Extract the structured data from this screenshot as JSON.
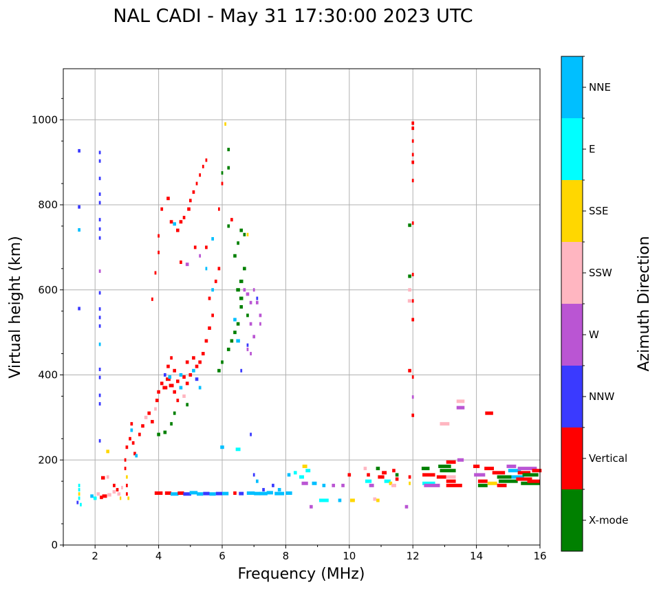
{
  "chart_data": {
    "type": "scatter",
    "title": "NAL CADI - May 31 17:30:00 2023 UTC",
    "xlabel": "Frequency (MHz)",
    "ylabel": "Virtual height (km)",
    "xlim": [
      1,
      16
    ],
    "ylim": [
      0,
      1120
    ],
    "xticks": [
      2,
      4,
      6,
      8,
      10,
      12,
      14,
      16
    ],
    "yticks": [
      0,
      200,
      400,
      600,
      800,
      1000
    ],
    "grid": true,
    "colorbar": {
      "label": "Azimuth Direction",
      "categories": [
        "X-mode",
        "Vertical",
        "NNW",
        "W",
        "SSW",
        "SSE",
        "E",
        "NNE"
      ],
      "colors": [
        "#008000",
        "#ff0000",
        "#3a3aff",
        "#ba55d3",
        "#ffb6c1",
        "#ffd700",
        "#00ffff",
        "#00bfff"
      ]
    },
    "points_format": "[frequency_MHz, height_km, category_index, bin_width_MHz]",
    "points": [
      [
        1.5,
        927,
        2,
        0.08
      ],
      [
        1.5,
        795,
        2,
        0.08
      ],
      [
        1.5,
        741,
        7,
        0.08
      ],
      [
        1.5,
        556,
        2,
        0.08
      ],
      [
        1.5,
        140,
        6,
        0.06
      ],
      [
        1.5,
        130,
        6,
        0.06
      ],
      [
        1.5,
        120,
        5,
        0.06
      ],
      [
        1.5,
        110,
        6,
        0.06
      ],
      [
        1.45,
        100,
        2,
        0.06
      ],
      [
        1.55,
        95,
        6,
        0.06
      ],
      [
        2.15,
        923,
        2,
        0.06
      ],
      [
        2.15,
        903,
        2,
        0.06
      ],
      [
        2.15,
        862,
        2,
        0.06
      ],
      [
        2.15,
        825,
        2,
        0.06
      ],
      [
        2.15,
        805,
        2,
        0.06
      ],
      [
        2.15,
        765,
        2,
        0.06
      ],
      [
        2.15,
        743,
        2,
        0.06
      ],
      [
        2.15,
        722,
        2,
        0.06
      ],
      [
        2.15,
        644,
        3,
        0.06
      ],
      [
        2.15,
        593,
        2,
        0.06
      ],
      [
        2.15,
        555,
        2,
        0.06
      ],
      [
        2.15,
        535,
        2,
        0.06
      ],
      [
        2.15,
        515,
        2,
        0.06
      ],
      [
        2.15,
        472,
        7,
        0.06
      ],
      [
        2.15,
        413,
        2,
        0.06
      ],
      [
        2.15,
        394,
        2,
        0.06
      ],
      [
        2.15,
        352,
        2,
        0.06
      ],
      [
        2.15,
        332,
        2,
        0.06
      ],
      [
        2.15,
        245,
        2,
        0.06
      ],
      [
        1.9,
        115,
        7,
        0.1
      ],
      [
        2.0,
        110,
        6,
        0.1
      ],
      [
        2.1,
        120,
        4,
        0.1
      ],
      [
        2.2,
        112,
        1,
        0.1
      ],
      [
        2.3,
        115,
        1,
        0.15
      ],
      [
        2.45,
        118,
        4,
        0.12
      ],
      [
        2.6,
        125,
        4,
        0.1
      ],
      [
        2.7,
        130,
        1,
        0.08
      ],
      [
        2.75,
        120,
        4,
        0.1
      ],
      [
        2.4,
        220,
        5,
        0.1
      ],
      [
        2.25,
        158,
        1,
        0.12
      ],
      [
        2.4,
        160,
        4,
        0.08
      ],
      [
        2.6,
        140,
        1,
        0.08
      ],
      [
        2.8,
        110,
        5,
        0.05
      ],
      [
        2.85,
        135,
        4,
        0.06
      ],
      [
        2.95,
        200,
        1,
        0.06
      ],
      [
        2.95,
        180,
        1,
        0.06
      ],
      [
        3.0,
        160,
        5,
        0.06
      ],
      [
        3.0,
        140,
        1,
        0.06
      ],
      [
        3.0,
        120,
        1,
        0.06
      ],
      [
        3.05,
        110,
        5,
        0.06
      ],
      [
        3.0,
        230,
        1,
        0.08
      ],
      [
        3.1,
        250,
        1,
        0.08
      ],
      [
        3.15,
        270,
        7,
        0.08
      ],
      [
        3.2,
        240,
        1,
        0.08
      ],
      [
        3.25,
        215,
        1,
        0.08
      ],
      [
        3.3,
        210,
        7,
        0.08
      ],
      [
        3.15,
        285,
        1,
        0.08
      ],
      [
        3.4,
        260,
        1,
        0.08
      ],
      [
        3.5,
        280,
        1,
        0.1
      ],
      [
        3.6,
        300,
        4,
        0.1
      ],
      [
        3.7,
        310,
        1,
        0.1
      ],
      [
        3.8,
        290,
        1,
        0.1
      ],
      [
        3.9,
        320,
        4,
        0.08
      ],
      [
        3.95,
        340,
        1,
        0.1
      ],
      [
        4.0,
        360,
        1,
        0.1
      ],
      [
        4.1,
        380,
        1,
        0.1
      ],
      [
        4.2,
        370,
        1,
        0.15
      ],
      [
        4.3,
        390,
        1,
        0.15
      ],
      [
        4.4,
        375,
        1,
        0.15
      ],
      [
        4.5,
        360,
        1,
        0.1
      ],
      [
        4.6,
        385,
        1,
        0.1
      ],
      [
        4.7,
        370,
        7,
        0.1
      ],
      [
        4.8,
        395,
        1,
        0.1
      ],
      [
        4.9,
        380,
        1,
        0.1
      ],
      [
        5.0,
        400,
        1,
        0.1
      ],
      [
        5.1,
        410,
        7,
        0.1
      ],
      [
        5.2,
        420,
        1,
        0.1
      ],
      [
        5.3,
        430,
        1,
        0.1
      ],
      [
        5.4,
        450,
        1,
        0.1
      ],
      [
        5.5,
        480,
        1,
        0.1
      ],
      [
        5.6,
        510,
        1,
        0.1
      ],
      [
        5.7,
        540,
        1,
        0.08
      ],
      [
        5.6,
        580,
        1,
        0.08
      ],
      [
        5.7,
        600,
        7,
        0.08
      ],
      [
        5.8,
        620,
        1,
        0.08
      ],
      [
        5.9,
        650,
        1,
        0.08
      ],
      [
        5.5,
        700,
        1,
        0.08
      ],
      [
        5.7,
        720,
        7,
        0.08
      ],
      [
        4.3,
        420,
        1,
        0.1
      ],
      [
        4.5,
        410,
        1,
        0.1
      ],
      [
        4.7,
        400,
        7,
        0.1
      ],
      [
        4.9,
        430,
        1,
        0.1
      ],
      [
        5.1,
        440,
        1,
        0.1
      ],
      [
        4.4,
        440,
        1,
        0.08
      ],
      [
        4.8,
        350,
        4,
        0.1
      ],
      [
        4.6,
        340,
        1,
        0.08
      ],
      [
        5.2,
        390,
        2,
        0.1
      ],
      [
        5.3,
        370,
        7,
        0.08
      ],
      [
        4.2,
        400,
        2,
        0.08
      ],
      [
        4.35,
        395,
        7,
        0.1
      ],
      [
        4.0,
        260,
        0,
        0.1
      ],
      [
        4.2,
        265,
        0,
        0.1
      ],
      [
        4.4,
        285,
        0,
        0.08
      ],
      [
        4.5,
        310,
        0,
        0.08
      ],
      [
        4.9,
        330,
        0,
        0.08
      ],
      [
        5.9,
        410,
        0,
        0.1
      ],
      [
        6.0,
        430,
        0,
        0.08
      ],
      [
        6.2,
        460,
        0,
        0.1
      ],
      [
        6.3,
        480,
        0,
        0.1
      ],
      [
        6.4,
        500,
        0,
        0.1
      ],
      [
        6.5,
        520,
        0,
        0.1
      ],
      [
        6.6,
        560,
        0,
        0.1
      ],
      [
        6.5,
        600,
        0,
        0.12
      ],
      [
        6.6,
        620,
        0,
        0.12
      ],
      [
        6.7,
        650,
        0,
        0.1
      ],
      [
        6.4,
        680,
        0,
        0.1
      ],
      [
        6.5,
        710,
        0,
        0.08
      ],
      [
        6.7,
        730,
        0,
        0.08
      ],
      [
        6.2,
        750,
        0,
        0.08
      ],
      [
        6.6,
        740,
        0,
        0.1
      ],
      [
        6.2,
        930,
        0,
        0.08
      ],
      [
        6.2,
        887,
        0,
        0.08
      ],
      [
        6.0,
        875,
        0,
        0.06
      ],
      [
        6.5,
        480,
        7,
        0.12
      ],
      [
        6.4,
        530,
        7,
        0.1
      ],
      [
        6.8,
        540,
        0,
        0.08
      ],
      [
        6.6,
        580,
        0,
        0.12
      ],
      [
        6.7,
        600,
        3,
        0.08
      ],
      [
        6.8,
        590,
        3,
        0.1
      ],
      [
        6.9,
        570,
        3,
        0.08
      ],
      [
        7.1,
        570,
        3,
        0.08
      ],
      [
        7.2,
        540,
        3,
        0.08
      ],
      [
        6.9,
        520,
        3,
        0.08
      ],
      [
        7.0,
        490,
        3,
        0.08
      ],
      [
        6.8,
        460,
        3,
        0.06
      ],
      [
        6.9,
        450,
        3,
        0.06
      ],
      [
        7.0,
        600,
        3,
        0.06
      ],
      [
        7.1,
        580,
        2,
        0.06
      ],
      [
        6.8,
        470,
        2,
        0.06
      ],
      [
        6.6,
        410,
        2,
        0.06
      ],
      [
        7.2,
        520,
        3,
        0.06
      ],
      [
        6.1,
        990,
        5,
        0.06
      ],
      [
        6.8,
        730,
        5,
        0.06
      ],
      [
        6.3,
        765,
        1,
        0.08
      ],
      [
        5.9,
        790,
        1,
        0.06
      ],
      [
        6.0,
        850,
        1,
        0.06
      ],
      [
        4.3,
        815,
        1,
        0.1
      ],
      [
        4.1,
        790,
        1,
        0.08
      ],
      [
        4.4,
        760,
        1,
        0.1
      ],
      [
        4.5,
        755,
        7,
        0.1
      ],
      [
        4.6,
        740,
        1,
        0.1
      ],
      [
        4.7,
        760,
        1,
        0.1
      ],
      [
        4.8,
        770,
        1,
        0.08
      ],
      [
        4.95,
        790,
        1,
        0.1
      ],
      [
        5.0,
        810,
        1,
        0.08
      ],
      [
        5.1,
        830,
        1,
        0.08
      ],
      [
        5.2,
        850,
        1,
        0.06
      ],
      [
        5.3,
        870,
        1,
        0.06
      ],
      [
        5.4,
        890,
        1,
        0.06
      ],
      [
        5.5,
        905,
        1,
        0.06
      ],
      [
        4.9,
        660,
        3,
        0.1
      ],
      [
        4.7,
        665,
        1,
        0.08
      ],
      [
        5.15,
        700,
        1,
        0.08
      ],
      [
        5.3,
        680,
        3,
        0.06
      ],
      [
        5.5,
        650,
        7,
        0.06
      ],
      [
        4.0,
        727,
        1,
        0.06
      ],
      [
        4.0,
        688,
        1,
        0.06
      ],
      [
        3.8,
        578,
        1,
        0.06
      ],
      [
        3.9,
        640,
        1,
        0.06
      ],
      [
        4.0,
        122,
        1,
        0.25
      ],
      [
        4.3,
        122,
        1,
        0.2
      ],
      [
        4.5,
        120,
        7,
        0.25
      ],
      [
        4.7,
        122,
        1,
        0.2
      ],
      [
        4.9,
        120,
        2,
        0.25
      ],
      [
        5.1,
        123,
        7,
        0.25
      ],
      [
        5.3,
        120,
        7,
        0.2
      ],
      [
        5.5,
        121,
        2,
        0.2
      ],
      [
        5.7,
        120,
        7,
        0.2
      ],
      [
        5.9,
        121,
        2,
        0.2
      ],
      [
        6.1,
        121,
        7,
        0.2
      ],
      [
        6.4,
        122,
        1,
        0.1
      ],
      [
        6.6,
        121,
        2,
        0.15
      ],
      [
        6.9,
        122,
        7,
        0.25
      ],
      [
        7.1,
        121,
        7,
        0.2
      ],
      [
        7.3,
        121,
        7,
        0.25
      ],
      [
        7.5,
        123,
        7,
        0.2
      ],
      [
        7.8,
        121,
        7,
        0.3
      ],
      [
        8.1,
        122,
        7,
        0.2
      ],
      [
        7.0,
        165,
        2,
        0.06
      ],
      [
        7.1,
        150,
        7,
        0.08
      ],
      [
        7.3,
        130,
        2,
        0.08
      ],
      [
        7.6,
        140,
        2,
        0.08
      ],
      [
        7.8,
        130,
        7,
        0.1
      ],
      [
        8.1,
        165,
        7,
        0.1
      ],
      [
        8.3,
        170,
        6,
        0.1
      ],
      [
        8.5,
        160,
        6,
        0.15
      ],
      [
        8.6,
        185,
        5,
        0.15
      ],
      [
        8.7,
        175,
        6,
        0.15
      ],
      [
        8.6,
        145,
        3,
        0.2
      ],
      [
        8.9,
        145,
        7,
        0.15
      ],
      [
        9.2,
        140,
        7,
        0.1
      ],
      [
        9.5,
        140,
        3,
        0.1
      ],
      [
        9.8,
        140,
        3,
        0.1
      ],
      [
        9.2,
        105,
        6,
        0.3
      ],
      [
        9.7,
        105,
        7,
        0.1
      ],
      [
        10.1,
        105,
        5,
        0.15
      ],
      [
        10.0,
        165,
        1,
        0.1
      ],
      [
        8.8,
        90,
        3,
        0.1
      ],
      [
        6.5,
        225,
        6,
        0.15
      ],
      [
        6.9,
        260,
        2,
        0.06
      ],
      [
        6.0,
        230,
        7,
        0.12
      ],
      [
        10.5,
        180,
        4,
        0.1
      ],
      [
        10.6,
        165,
        1,
        0.1
      ],
      [
        10.6,
        150,
        6,
        0.2
      ],
      [
        10.7,
        140,
        3,
        0.15
      ],
      [
        10.9,
        180,
        0,
        0.12
      ],
      [
        11.0,
        160,
        1,
        0.2
      ],
      [
        11.1,
        170,
        1,
        0.15
      ],
      [
        11.2,
        150,
        6,
        0.2
      ],
      [
        11.3,
        145,
        5,
        0.1
      ],
      [
        11.4,
        175,
        1,
        0.1
      ],
      [
        11.5,
        165,
        0,
        0.1
      ],
      [
        11.4,
        140,
        4,
        0.15
      ],
      [
        11.5,
        155,
        1,
        0.1
      ],
      [
        10.9,
        105,
        5,
        0.1
      ],
      [
        10.8,
        108,
        4,
        0.1
      ],
      [
        11.8,
        90,
        3,
        0.1
      ],
      [
        12.0,
        992,
        1,
        0.08
      ],
      [
        12.0,
        980,
        1,
        0.08
      ],
      [
        12.0,
        950,
        1,
        0.06
      ],
      [
        12.0,
        918,
        1,
        0.06
      ],
      [
        12.0,
        900,
        1,
        0.08
      ],
      [
        12.0,
        857,
        1,
        0.06
      ],
      [
        11.9,
        752,
        0,
        0.1
      ],
      [
        12.0,
        757,
        1,
        0.06
      ],
      [
        11.9,
        632,
        0,
        0.1
      ],
      [
        12.0,
        636,
        1,
        0.06
      ],
      [
        11.9,
        600,
        4,
        0.1
      ],
      [
        11.9,
        574,
        4,
        0.12
      ],
      [
        12.0,
        574,
        1,
        0.06
      ],
      [
        12.0,
        530,
        1,
        0.08
      ],
      [
        11.9,
        410,
        1,
        0.1
      ],
      [
        12.0,
        395,
        1,
        0.06
      ],
      [
        12.0,
        348,
        3,
        0.06
      ],
      [
        12.0,
        305,
        1,
        0.08
      ],
      [
        11.9,
        160,
        1,
        0.08
      ],
      [
        11.9,
        145,
        5,
        0.06
      ],
      [
        12.4,
        180,
        0,
        0.25
      ],
      [
        12.5,
        165,
        1,
        0.4
      ],
      [
        12.5,
        145,
        6,
        0.4
      ],
      [
        12.6,
        140,
        3,
        0.5
      ],
      [
        12.9,
        160,
        1,
        0.3
      ],
      [
        13.0,
        185,
        0,
        0.4
      ],
      [
        13.1,
        175,
        0,
        0.5
      ],
      [
        13.2,
        160,
        4,
        0.3
      ],
      [
        13.2,
        150,
        1,
        0.3
      ],
      [
        13.3,
        140,
        1,
        0.5
      ],
      [
        13.2,
        195,
        1,
        0.3
      ],
      [
        13.5,
        200,
        3,
        0.2
      ],
      [
        13.0,
        285,
        4,
        0.3
      ],
      [
        13.5,
        338,
        4,
        0.25
      ],
      [
        13.5,
        323,
        3,
        0.25
      ],
      [
        14.4,
        310,
        1,
        0.25
      ],
      [
        14.0,
        185,
        1,
        0.2
      ],
      [
        14.1,
        165,
        3,
        0.35
      ],
      [
        14.2,
        150,
        1,
        0.3
      ],
      [
        14.2,
        140,
        0,
        0.3
      ],
      [
        14.4,
        180,
        1,
        0.3
      ],
      [
        14.5,
        145,
        5,
        0.3
      ],
      [
        14.7,
        170,
        1,
        0.4
      ],
      [
        14.8,
        140,
        1,
        0.3
      ],
      [
        14.9,
        160,
        0,
        0.5
      ],
      [
        15.0,
        150,
        0,
        0.6
      ],
      [
        15.1,
        185,
        3,
        0.3
      ],
      [
        15.2,
        175,
        7,
        0.4
      ],
      [
        15.3,
        160,
        7,
        0.4
      ],
      [
        15.5,
        170,
        1,
        0.4
      ],
      [
        15.6,
        180,
        3,
        0.6
      ],
      [
        15.7,
        165,
        0,
        0.5
      ],
      [
        15.7,
        145,
        0,
        0.6
      ],
      [
        15.5,
        155,
        1,
        0.5
      ],
      [
        15.9,
        175,
        1,
        0.3
      ],
      [
        15.8,
        150,
        1,
        0.4
      ]
    ]
  }
}
